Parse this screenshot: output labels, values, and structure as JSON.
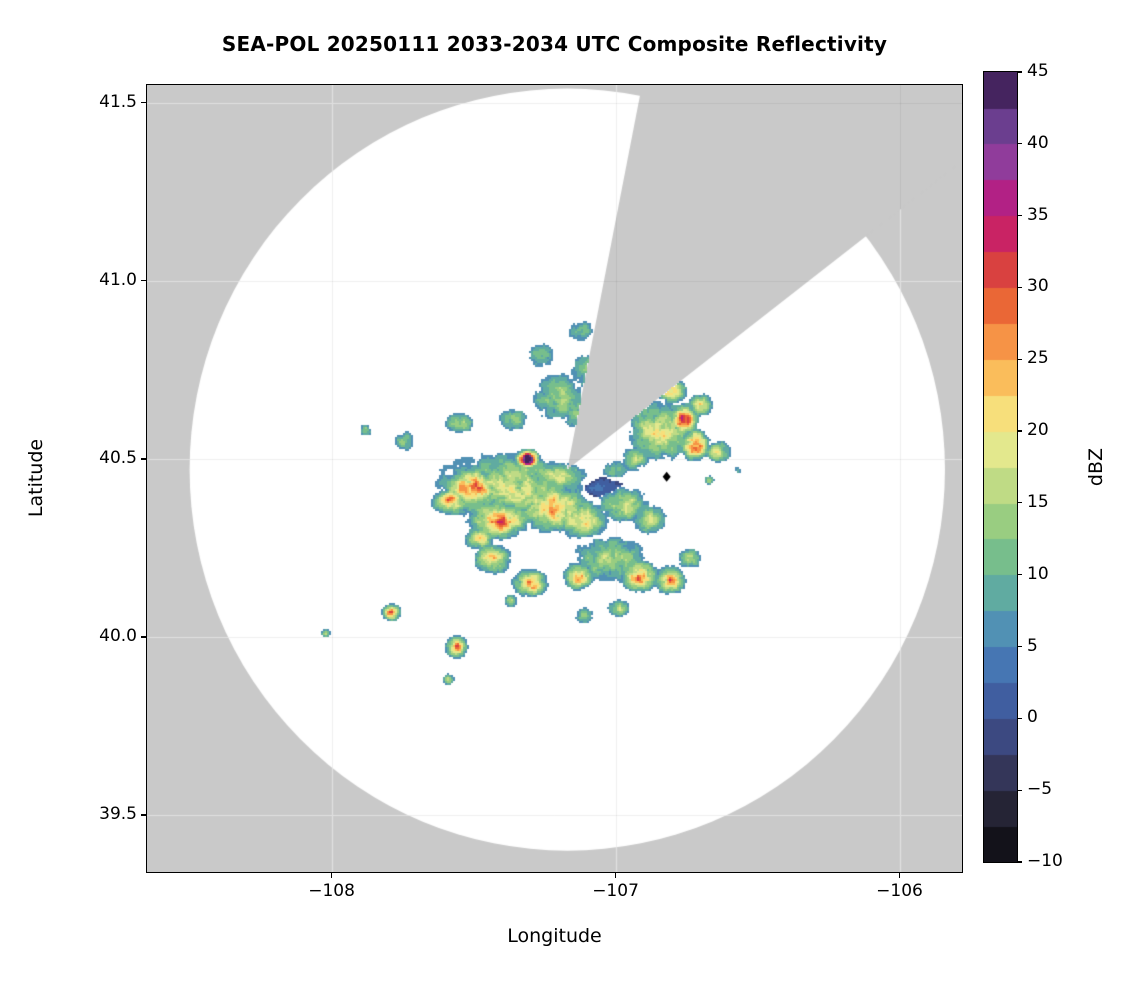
{
  "chart_data": {
    "type": "heatmap",
    "title": "SEA-POL 20250111 2033-2034 UTC Composite Reflectivity",
    "xlabel": "Longitude",
    "ylabel": "Latitude",
    "xlim": [
      -108.65,
      -105.78
    ],
    "ylim": [
      39.34,
      41.55
    ],
    "xtick_values": [
      -108,
      -107,
      -106
    ],
    "xtick_labels": [
      "−108",
      "−107",
      "−106"
    ],
    "ytick_values": [
      39.5,
      40.0,
      40.5,
      41.0,
      41.5
    ],
    "ytick_labels": [
      "39.5",
      "40.0",
      "40.5",
      "41.0",
      "41.5"
    ],
    "grid": true,
    "colorbar": {
      "label": "dBZ",
      "min": -10,
      "max": 45,
      "step": 2.5,
      "tick_values": [
        -10,
        -5,
        0,
        5,
        10,
        15,
        20,
        25,
        30,
        35,
        40,
        45
      ],
      "tick_labels": [
        "−10",
        "−5",
        "0",
        "5",
        "10",
        "15",
        "20",
        "25",
        "30",
        "35",
        "40",
        "45"
      ],
      "stops": [
        [
          -10,
          "#09080d"
        ],
        [
          -7.5,
          "#1c1b26"
        ],
        [
          -5,
          "#2e2c44"
        ],
        [
          -2.5,
          "#393f6e"
        ],
        [
          0,
          "#3f5394"
        ],
        [
          2.5,
          "#4169ab"
        ],
        [
          5,
          "#4a82bb"
        ],
        [
          7.5,
          "#58a0ad"
        ],
        [
          10,
          "#68b694"
        ],
        [
          12.5,
          "#86c683"
        ],
        [
          15,
          "#abd37f"
        ],
        [
          17.5,
          "#d2e38b"
        ],
        [
          20,
          "#f3ec8f"
        ],
        [
          22.5,
          "#fbd267"
        ],
        [
          25,
          "#f9a84f"
        ],
        [
          27.5,
          "#f27d3d"
        ],
        [
          30,
          "#e1512f"
        ],
        [
          32.5,
          "#d03050"
        ],
        [
          35,
          "#c21578"
        ],
        [
          37.5,
          "#a12d92"
        ],
        [
          40,
          "#7e4aa4"
        ],
        [
          42.5,
          "#573179"
        ],
        [
          45,
          "#331744"
        ]
      ]
    },
    "radar": {
      "center_lon": -107.17,
      "center_lat": 40.47,
      "radius_lon_deg": 1.33,
      "radius_lat_deg": 1.07,
      "blocked_sector_azimuth_deg": [
        11,
        52
      ],
      "outside_color": "#c9c9c9",
      "coverage_color": "#ffffff"
    },
    "marker": {
      "lon": -106.82,
      "lat": 40.45,
      "shape": "diamond",
      "color": "#000000"
    },
    "noise_seed": 7,
    "echoes_dbz_blobs": [
      {
        "lon": -107.38,
        "lat": 40.42,
        "rx": 0.26,
        "ry": 0.095,
        "dbz": 18
      },
      {
        "lon": -107.5,
        "lat": 40.42,
        "rx": 0.09,
        "ry": 0.05,
        "dbz": 29
      },
      {
        "lon": -107.58,
        "lat": 40.38,
        "rx": 0.06,
        "ry": 0.035,
        "dbz": 25
      },
      {
        "lon": -107.41,
        "lat": 40.33,
        "rx": 0.1,
        "ry": 0.05,
        "dbz": 27
      },
      {
        "lon": -107.22,
        "lat": 40.36,
        "rx": 0.11,
        "ry": 0.06,
        "dbz": 24
      },
      {
        "lon": -107.12,
        "lat": 40.33,
        "rx": 0.09,
        "ry": 0.05,
        "dbz": 21
      },
      {
        "lon": -107.2,
        "lat": 40.45,
        "rx": 0.1,
        "ry": 0.045,
        "dbz": 16
      },
      {
        "lon": -107.31,
        "lat": 40.5,
        "rx": 0.035,
        "ry": 0.022,
        "dbz": 44
      },
      {
        "lon": -107.2,
        "lat": 40.43,
        "rx": 0.09,
        "ry": 0.025,
        "dbz": 9,
        "off": -7,
        "thr": 3.5
      },
      {
        "lon": -107.05,
        "lat": 40.42,
        "rx": 0.08,
        "ry": 0.03,
        "dbz": 10,
        "off": -5,
        "thr": 4
      },
      {
        "lon": -106.97,
        "lat": 40.37,
        "rx": 0.09,
        "ry": 0.05,
        "dbz": 17
      },
      {
        "lon": -106.88,
        "lat": 40.33,
        "rx": 0.06,
        "ry": 0.04,
        "dbz": 19
      },
      {
        "lon": -107.0,
        "lat": 40.47,
        "rx": 0.05,
        "ry": 0.03,
        "dbz": 12
      },
      {
        "lon": -107.2,
        "lat": 40.67,
        "rx": 0.1,
        "ry": 0.07,
        "dbz": 15
      },
      {
        "lon": -107.09,
        "lat": 40.74,
        "rx": 0.08,
        "ry": 0.06,
        "dbz": 13
      },
      {
        "lon": -107.12,
        "lat": 40.63,
        "rx": 0.07,
        "ry": 0.045,
        "dbz": 15
      },
      {
        "lon": -107.26,
        "lat": 40.79,
        "rx": 0.055,
        "ry": 0.04,
        "dbz": 12
      },
      {
        "lon": -107.12,
        "lat": 40.86,
        "rx": 0.05,
        "ry": 0.035,
        "dbz": 12
      },
      {
        "lon": -107.36,
        "lat": 40.61,
        "rx": 0.055,
        "ry": 0.035,
        "dbz": 14
      },
      {
        "lon": -107.55,
        "lat": 40.6,
        "rx": 0.05,
        "ry": 0.03,
        "dbz": 15
      },
      {
        "lon": -107.74,
        "lat": 40.55,
        "rx": 0.04,
        "ry": 0.028,
        "dbz": 14
      },
      {
        "lon": -107.88,
        "lat": 40.58,
        "rx": 0.025,
        "ry": 0.02,
        "dbz": 12
      },
      {
        "lon": -106.84,
        "lat": 40.58,
        "rx": 0.12,
        "ry": 0.08,
        "dbz": 19
      },
      {
        "lon": -106.76,
        "lat": 40.61,
        "rx": 0.05,
        "ry": 0.04,
        "dbz": 29
      },
      {
        "lon": -106.72,
        "lat": 40.54,
        "rx": 0.045,
        "ry": 0.04,
        "dbz": 30
      },
      {
        "lon": -106.8,
        "lat": 40.69,
        "rx": 0.05,
        "ry": 0.035,
        "dbz": 21
      },
      {
        "lon": -106.7,
        "lat": 40.65,
        "rx": 0.04,
        "ry": 0.03,
        "dbz": 24
      },
      {
        "lon": -106.64,
        "lat": 40.52,
        "rx": 0.045,
        "ry": 0.03,
        "dbz": 17
      },
      {
        "lon": -106.93,
        "lat": 40.5,
        "rx": 0.05,
        "ry": 0.035,
        "dbz": 15
      },
      {
        "lon": -107.02,
        "lat": 40.22,
        "rx": 0.13,
        "ry": 0.065,
        "dbz": 16
      },
      {
        "lon": -106.91,
        "lat": 40.17,
        "rx": 0.06,
        "ry": 0.04,
        "dbz": 28
      },
      {
        "lon": -106.81,
        "lat": 40.16,
        "rx": 0.05,
        "ry": 0.035,
        "dbz": 26
      },
      {
        "lon": -107.13,
        "lat": 40.17,
        "rx": 0.05,
        "ry": 0.035,
        "dbz": 23
      },
      {
        "lon": -107.3,
        "lat": 40.15,
        "rx": 0.055,
        "ry": 0.035,
        "dbz": 27
      },
      {
        "lon": -107.43,
        "lat": 40.22,
        "rx": 0.06,
        "ry": 0.04,
        "dbz": 23
      },
      {
        "lon": -107.48,
        "lat": 40.28,
        "rx": 0.05,
        "ry": 0.035,
        "dbz": 19
      },
      {
        "lon": -106.74,
        "lat": 40.22,
        "rx": 0.04,
        "ry": 0.03,
        "dbz": 15
      },
      {
        "lon": -107.11,
        "lat": 40.06,
        "rx": 0.035,
        "ry": 0.025,
        "dbz": 15
      },
      {
        "lon": -106.99,
        "lat": 40.08,
        "rx": 0.04,
        "ry": 0.025,
        "dbz": 16
      },
      {
        "lon": -107.79,
        "lat": 40.07,
        "rx": 0.03,
        "ry": 0.022,
        "dbz": 26
      },
      {
        "lon": -108.02,
        "lat": 40.01,
        "rx": 0.018,
        "ry": 0.014,
        "dbz": 16
      },
      {
        "lon": -107.56,
        "lat": 39.97,
        "rx": 0.035,
        "ry": 0.028,
        "dbz": 27
      },
      {
        "lon": -107.59,
        "lat": 39.88,
        "rx": 0.022,
        "ry": 0.018,
        "dbz": 15
      },
      {
        "lon": -107.37,
        "lat": 40.1,
        "rx": 0.025,
        "ry": 0.02,
        "dbz": 14
      },
      {
        "lon": -106.67,
        "lat": 40.44,
        "rx": 0.02,
        "ry": 0.015,
        "dbz": 12
      },
      {
        "lon": -106.57,
        "lat": 40.47,
        "rx": 0.018,
        "ry": 0.012,
        "dbz": 10
      }
    ]
  }
}
